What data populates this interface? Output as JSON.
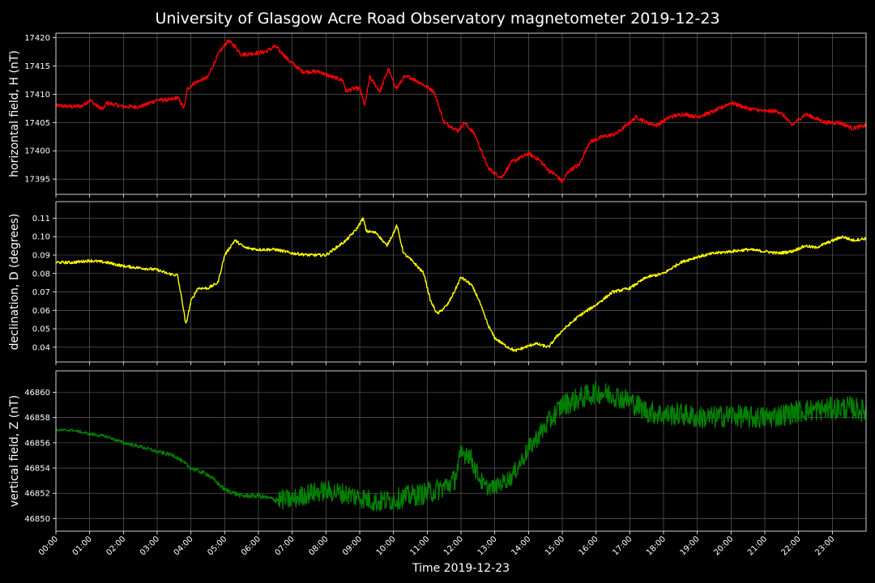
{
  "chart_data": {
    "title": "University of Glasgow Acre Road Observatory magnetometer 2019-12-23",
    "xlabel": "Time 2019-12-23",
    "x_tick_labels": [
      "00:00",
      "01:00",
      "02:00",
      "03:00",
      "04:00",
      "05:00",
      "06:00",
      "07:00",
      "08:00",
      "09:00",
      "10:00",
      "11:00",
      "12:00",
      "13:00",
      "14:00",
      "15:00",
      "16:00",
      "17:00",
      "18:00",
      "19:00",
      "20:00",
      "21:00",
      "22:00",
      "23:00"
    ],
    "x_range_hours": [
      0,
      24
    ],
    "grid": true,
    "panels": [
      {
        "type": "line",
        "ylabel": "horizontal field, H (nT)",
        "color": "#ff0000",
        "ylim": [
          17392.3,
          17420.8
        ],
        "yticks": [
          17395,
          17400,
          17405,
          17410,
          17415,
          17420
        ],
        "tick_decimals": 0,
        "noise": 0.35,
        "series": [
          {
            "x": [
              0,
              0.5,
              0.8,
              1.0,
              1.2,
              1.4,
              1.5,
              2.0,
              2.5,
              3.0,
              3.4,
              3.6,
              3.8,
              3.9,
              4.1,
              4.5,
              4.8,
              5.1,
              5.3,
              5.5,
              5.8,
              6.2,
              6.5,
              6.9,
              7.3,
              7.8,
              8.2,
              8.5,
              8.6,
              8.8,
              9.0,
              9.15,
              9.3,
              9.6,
              9.85,
              10.0,
              10.1,
              10.3,
              10.5,
              10.8,
              11.2,
              11.5,
              11.8,
              11.9,
              12.1,
              12.4,
              12.6,
              12.8,
              13.0,
              13.2,
              13.5,
              14.0,
              14.3,
              14.6,
              14.8,
              15.0,
              15.2,
              15.5,
              15.8,
              16.2,
              16.6,
              16.9,
              17.2,
              17.5,
              17.8,
              18.2,
              18.6,
              19.0,
              19.5,
              20.0,
              20.5,
              21.0,
              21.4,
              21.6,
              21.8,
              22.2,
              22.8,
              23.2,
              23.6,
              24.0
            ],
            "y": [
              17408,
              17407.8,
              17408,
              17409,
              17408,
              17407.3,
              17408.5,
              17407.8,
              17407.8,
              17409,
              17409,
              17409.5,
              17407.5,
              17411,
              17412,
              17413,
              17417,
              17419.5,
              17418.5,
              17417,
              17417.2,
              17417.5,
              17418.5,
              17416,
              17414,
              17414,
              17413,
              17412.5,
              17410.5,
              17411,
              17411,
              17408,
              17413,
              17410.5,
              17414.5,
              17412,
              17411,
              17413,
              17413,
              17412,
              17410.5,
              17405,
              17404,
              17403.5,
              17405,
              17403,
              17400,
              17397,
              17396,
              17395.3,
              17398,
              17399.5,
              17398.5,
              17396.5,
              17395.8,
              17394.5,
              17396.5,
              17397.5,
              17401.5,
              17402.5,
              17403,
              17404.5,
              17406,
              17405,
              17404.5,
              17406,
              17406.5,
              17406,
              17407,
              17408.5,
              17407.5,
              17407,
              17407,
              17406,
              17404.5,
              17406.5,
              17405,
              17405,
              17404,
              17404.5
            ]
          }
        ]
      },
      {
        "type": "line",
        "ylabel": "declination, D (degrees)",
        "color": "#ffff00",
        "ylim": [
          0.032,
          0.119
        ],
        "yticks": [
          0.04,
          0.05,
          0.06,
          0.07,
          0.08,
          0.09,
          0.1,
          0.11
        ],
        "tick_decimals": 2,
        "noise": 0.0008,
        "series": [
          {
            "x": [
              0,
              0.5,
              1.0,
              1.5,
              2.0,
              2.5,
              3.0,
              3.3,
              3.6,
              3.75,
              3.85,
              4.0,
              4.2,
              4.5,
              4.8,
              5.0,
              5.3,
              5.6,
              6.0,
              6.5,
              7.0,
              7.5,
              8.0,
              8.3,
              8.6,
              8.9,
              9.1,
              9.2,
              9.5,
              9.8,
              10.0,
              10.1,
              10.3,
              10.6,
              10.9,
              11.1,
              11.3,
              11.6,
              11.8,
              12.0,
              12.3,
              12.5,
              12.8,
              13.0,
              13.3,
              13.6,
              13.9,
              14.2,
              14.6,
              14.8,
              15.0,
              15.5,
              16.0,
              16.5,
              17.0,
              17.5,
              18.0,
              18.5,
              19.0,
              19.5,
              20.0,
              20.5,
              21.0,
              21.4,
              21.8,
              22.2,
              22.5,
              22.9,
              23.3,
              23.6,
              24.0
            ],
            "y": [
              0.086,
              0.086,
              0.087,
              0.086,
              0.084,
              0.083,
              0.082,
              0.08,
              0.079,
              0.064,
              0.052,
              0.065,
              0.072,
              0.072,
              0.075,
              0.09,
              0.098,
              0.094,
              0.093,
              0.093,
              0.091,
              0.09,
              0.09,
              0.094,
              0.098,
              0.104,
              0.11,
              0.103,
              0.102,
              0.095,
              0.102,
              0.106,
              0.091,
              0.086,
              0.08,
              0.065,
              0.058,
              0.063,
              0.07,
              0.078,
              0.074,
              0.067,
              0.052,
              0.045,
              0.041,
              0.038,
              0.04,
              0.042,
              0.04,
              0.045,
              0.049,
              0.057,
              0.063,
              0.07,
              0.072,
              0.078,
              0.08,
              0.086,
              0.089,
              0.091,
              0.092,
              0.093,
              0.092,
              0.091,
              0.092,
              0.095,
              0.094,
              0.097,
              0.1,
              0.098,
              0.099
            ]
          }
        ]
      },
      {
        "type": "line",
        "ylabel": "vertical field, Z (nT)",
        "color": "#008000",
        "ylim": [
          46849.0,
          46861.7
        ],
        "yticks": [
          46850,
          46852,
          46854,
          46856,
          46858,
          46860
        ],
        "tick_decimals": 0,
        "noise_schedule": [
          [
            0,
            0.1
          ],
          [
            6.5,
            0.2
          ],
          [
            6.6,
            0.8
          ],
          [
            12.0,
            0.9
          ],
          [
            13.0,
            0.6
          ],
          [
            15.0,
            0.9
          ],
          [
            24,
            0.9
          ]
        ],
        "series": [
          {
            "x": [
              0,
              0.5,
              1.0,
              1.5,
              2.0,
              2.5,
              3.0,
              3.5,
              4.0,
              4.5,
              5.0,
              5.5,
              6.0,
              6.5,
              7.0,
              7.5,
              8.0,
              8.5,
              9.0,
              9.5,
              10.0,
              10.5,
              11.0,
              11.5,
              11.8,
              12.0,
              12.2,
              12.5,
              12.7,
              13.0,
              13.5,
              14.0,
              14.5,
              15.0,
              15.5,
              16.0,
              16.5,
              17.0,
              17.5,
              18.0,
              18.5,
              19.0,
              19.5,
              20.0,
              20.5,
              21.0,
              21.5,
              22.0,
              22.5,
              23.0,
              23.5,
              24.0
            ],
            "y": [
              46857,
              46857,
              46856.7,
              46856.5,
              46856,
              46855.7,
              46855.3,
              46855,
              46854,
              46853.5,
              46852.3,
              46851.8,
              46851.8,
              46851.5,
              46851.5,
              46852,
              46852.2,
              46852,
              46851.7,
              46851.3,
              46851.5,
              46851.8,
              46852,
              46852.5,
              46853,
              46855,
              46855.3,
              46853.5,
              46852.5,
              46852.5,
              46853.3,
              46855.5,
              46857.3,
              46859,
              46859.5,
              46860,
              46859.8,
              46859.3,
              46858.5,
              46858.2,
              46858.3,
              46858,
              46858,
              46858.2,
              46858,
              46858,
              46858.2,
              46858.5,
              46858.6,
              46858.7,
              46858.8,
              46858.5
            ]
          }
        ]
      }
    ]
  }
}
